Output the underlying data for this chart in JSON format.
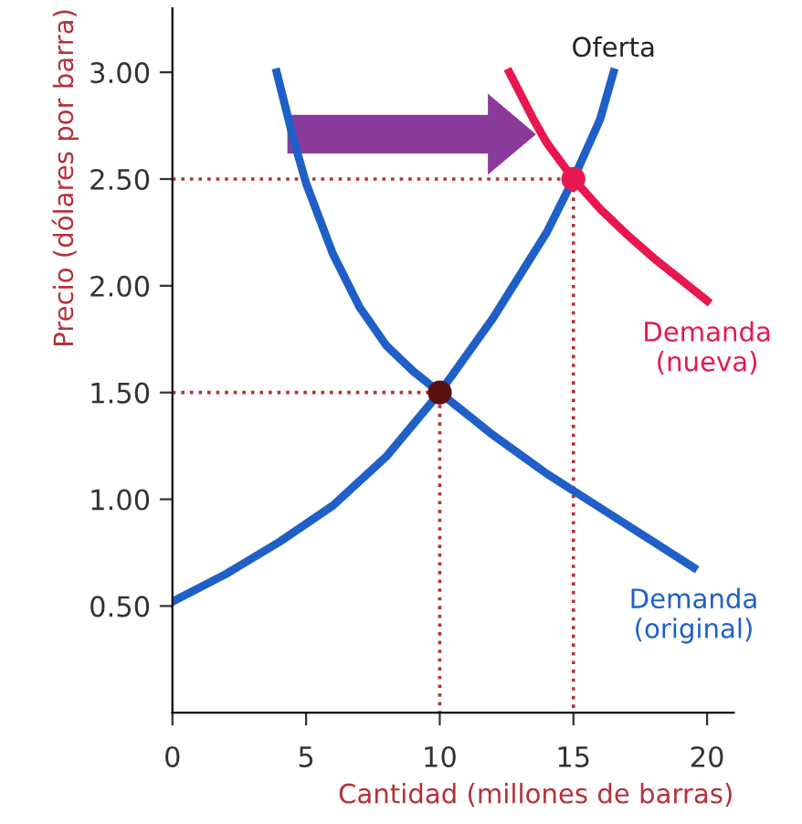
{
  "chart_data": {
    "type": "line",
    "xlabel": "Cantidad (millones de barras)",
    "ylabel": "Precio (dólares por barra)",
    "xlim": [
      0,
      21
    ],
    "ylim": [
      0,
      3.3
    ],
    "xticks": [
      0,
      5,
      10,
      15,
      20
    ],
    "yticks": [
      {
        "value": 0.5,
        "label": "0.50"
      },
      {
        "value": 1,
        "label": "1.00"
      },
      {
        "value": 1.5,
        "label": "1.50"
      },
      {
        "value": 2,
        "label": "2.00"
      },
      {
        "value": 2.5,
        "label": "2.50"
      },
      {
        "value": 3,
        "label": "3.00"
      }
    ],
    "grid": false,
    "legend": false,
    "marker": "none",
    "line_style": "solid",
    "series": [
      {
        "name": "Oferta",
        "color": "#1f5fc8",
        "x": [
          0,
          2,
          4,
          6,
          8,
          10,
          12,
          14,
          15,
          16,
          16.5
        ],
        "values": [
          0.52,
          0.65,
          0.8,
          0.97,
          1.2,
          1.5,
          1.85,
          2.25,
          2.5,
          2.78,
          3.0
        ]
      },
      {
        "name": "Demanda\n(original)",
        "color": "#1f5fc8",
        "x": [
          3.9,
          4.5,
          5,
          6,
          7,
          8,
          9,
          10,
          12,
          14,
          16,
          18,
          19.5
        ],
        "values": [
          3.0,
          2.7,
          2.48,
          2.15,
          1.9,
          1.72,
          1.6,
          1.5,
          1.3,
          1.12,
          0.96,
          0.8,
          0.68
        ]
      },
      {
        "name": "Demanda\n(nueva)",
        "color": "#e8174f",
        "x": [
          12.6,
          13.5,
          14,
          15,
          16,
          17,
          18,
          19,
          20
        ],
        "values": [
          3.0,
          2.78,
          2.67,
          2.5,
          2.36,
          2.24,
          2.13,
          2.03,
          1.93
        ]
      },
      {
        "color": "#b5303a",
        "line_style": "dotted",
        "x": [
          0,
          10,
          10
        ],
        "values": [
          1.5,
          1.5,
          0
        ]
      },
      {
        "color": "#b5303a",
        "line_style": "dotted",
        "x": [
          0,
          15,
          15
        ],
        "values": [
          2.5,
          2.5,
          0
        ]
      },
      {
        "type": "scatter",
        "marker": "circle",
        "colors": [
          "#5a1010",
          "#e8174f"
        ],
        "x": [
          10,
          15
        ],
        "values": [
          1.5,
          2.5
        ]
      }
    ]
  }
}
